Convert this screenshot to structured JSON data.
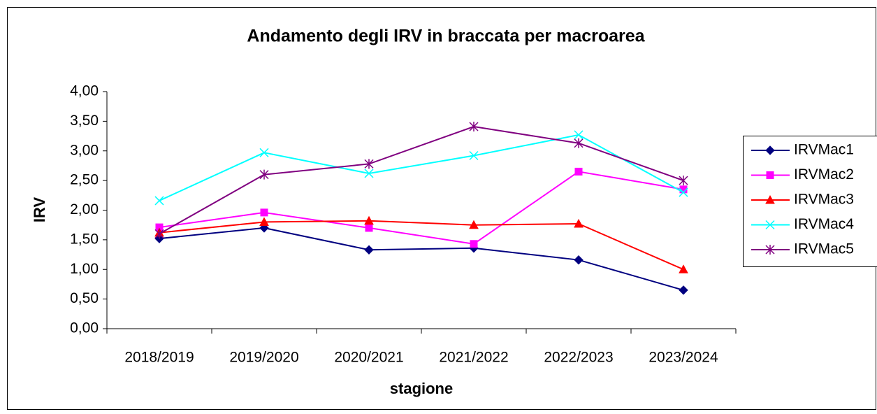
{
  "chart_data": {
    "type": "line",
    "title": "Andamento degli  IRV in braccata per macroarea",
    "xlabel": "stagione",
    "ylabel": "IRV",
    "categories": [
      "2018/2019",
      "2019/2020",
      "2020/2021",
      "2021/2022",
      "2022/2023",
      "2023/2024"
    ],
    "series": [
      {
        "name": "IRVMac1",
        "color": "#000080",
        "marker": "diamond",
        "values": [
          1.52,
          1.7,
          1.33,
          1.36,
          1.16,
          0.65
        ]
      },
      {
        "name": "IRVMac2",
        "color": "#ff00ff",
        "marker": "square",
        "values": [
          1.71,
          1.96,
          1.7,
          1.43,
          2.65,
          2.35
        ]
      },
      {
        "name": "IRVMac3",
        "color": "#ff0000",
        "marker": "triangle",
        "values": [
          1.62,
          1.8,
          1.82,
          1.75,
          1.77,
          1.0
        ]
      },
      {
        "name": "IRVMac4",
        "color": "#00ffff",
        "marker": "x",
        "values": [
          2.16,
          2.97,
          2.62,
          2.92,
          3.27,
          2.3
        ]
      },
      {
        "name": "IRVMac5",
        "color": "#800080",
        "marker": "asterisk",
        "values": [
          1.6,
          2.6,
          2.78,
          3.41,
          3.13,
          2.5
        ]
      }
    ],
    "ylim": [
      0,
      4
    ],
    "yticks": [
      {
        "value": 0,
        "label": "0,00"
      },
      {
        "value": 0.5,
        "label": "0,50"
      },
      {
        "value": 1,
        "label": "1,00"
      },
      {
        "value": 1.5,
        "label": "1,50"
      },
      {
        "value": 2,
        "label": "2,00"
      },
      {
        "value": 2.5,
        "label": "2,50"
      },
      {
        "value": 3,
        "label": "3,00"
      },
      {
        "value": 3.5,
        "label": "3,50"
      },
      {
        "value": 4,
        "label": "4,00"
      }
    ],
    "grid": false,
    "legend": "right"
  }
}
